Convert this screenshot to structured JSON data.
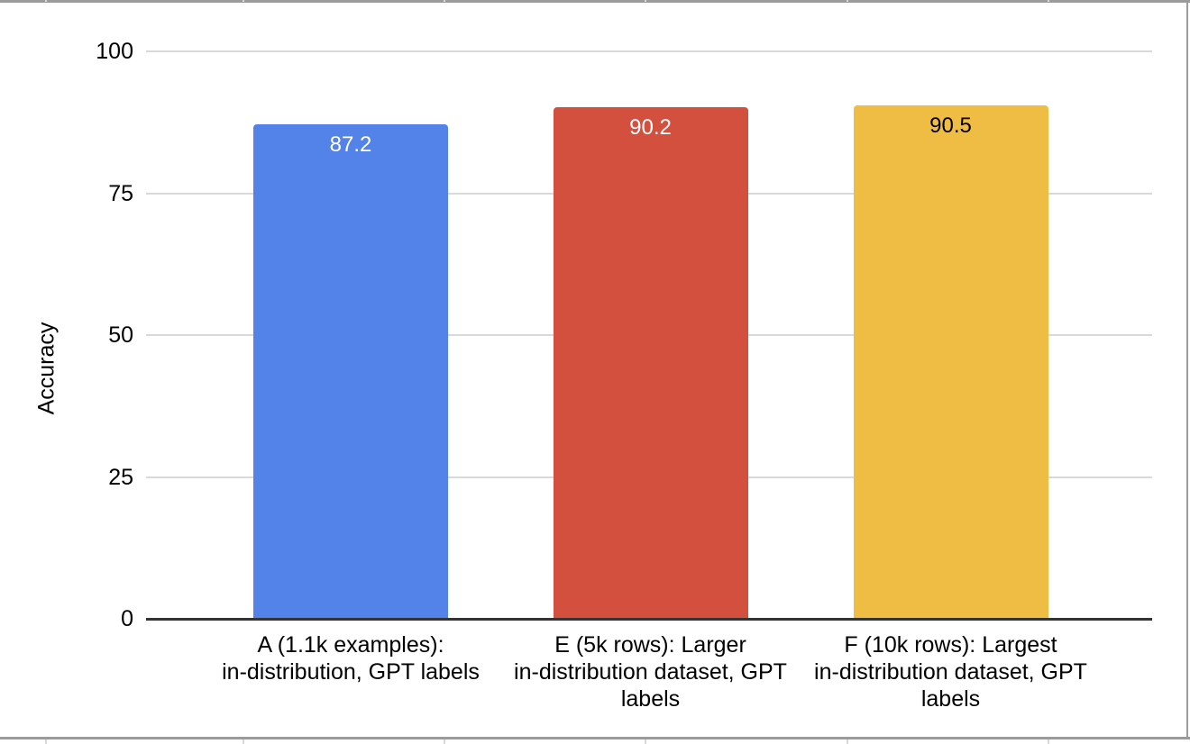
{
  "chart_data": {
    "type": "bar",
    "title": "",
    "ylabel": "Accuracy",
    "xlabel": "",
    "ylim": [
      0,
      100
    ],
    "yticks": [
      0,
      25,
      50,
      75,
      100
    ],
    "grid": true,
    "legend_position": "none",
    "categories": [
      "A (1.1k examples):\nin-distribution, GPT labels",
      "E (5k rows): Larger\nin-distribution dataset, GPT\nlabels",
      "F (10k rows): Largest\nin-distribution dataset, GPT\nlabels"
    ],
    "series": [
      {
        "name": "Accuracy",
        "values": [
          87.2,
          90.2,
          90.5
        ]
      }
    ],
    "value_labels": [
      "87.2",
      "90.2",
      "90.5"
    ],
    "bar_colors": [
      "#5383E8",
      "#D4503E",
      "#F0BD44"
    ],
    "value_label_colors": [
      "#FFFFFF",
      "#FFFFFF",
      "#000000"
    ]
  },
  "colors": {
    "background": "#FFFFFF",
    "gridline": "#D9D9D9",
    "axis_line": "#333333",
    "frame_border": "#9B9B9B",
    "sheet_gridline": "#D8D8D8",
    "tick_label": "#000000"
  }
}
